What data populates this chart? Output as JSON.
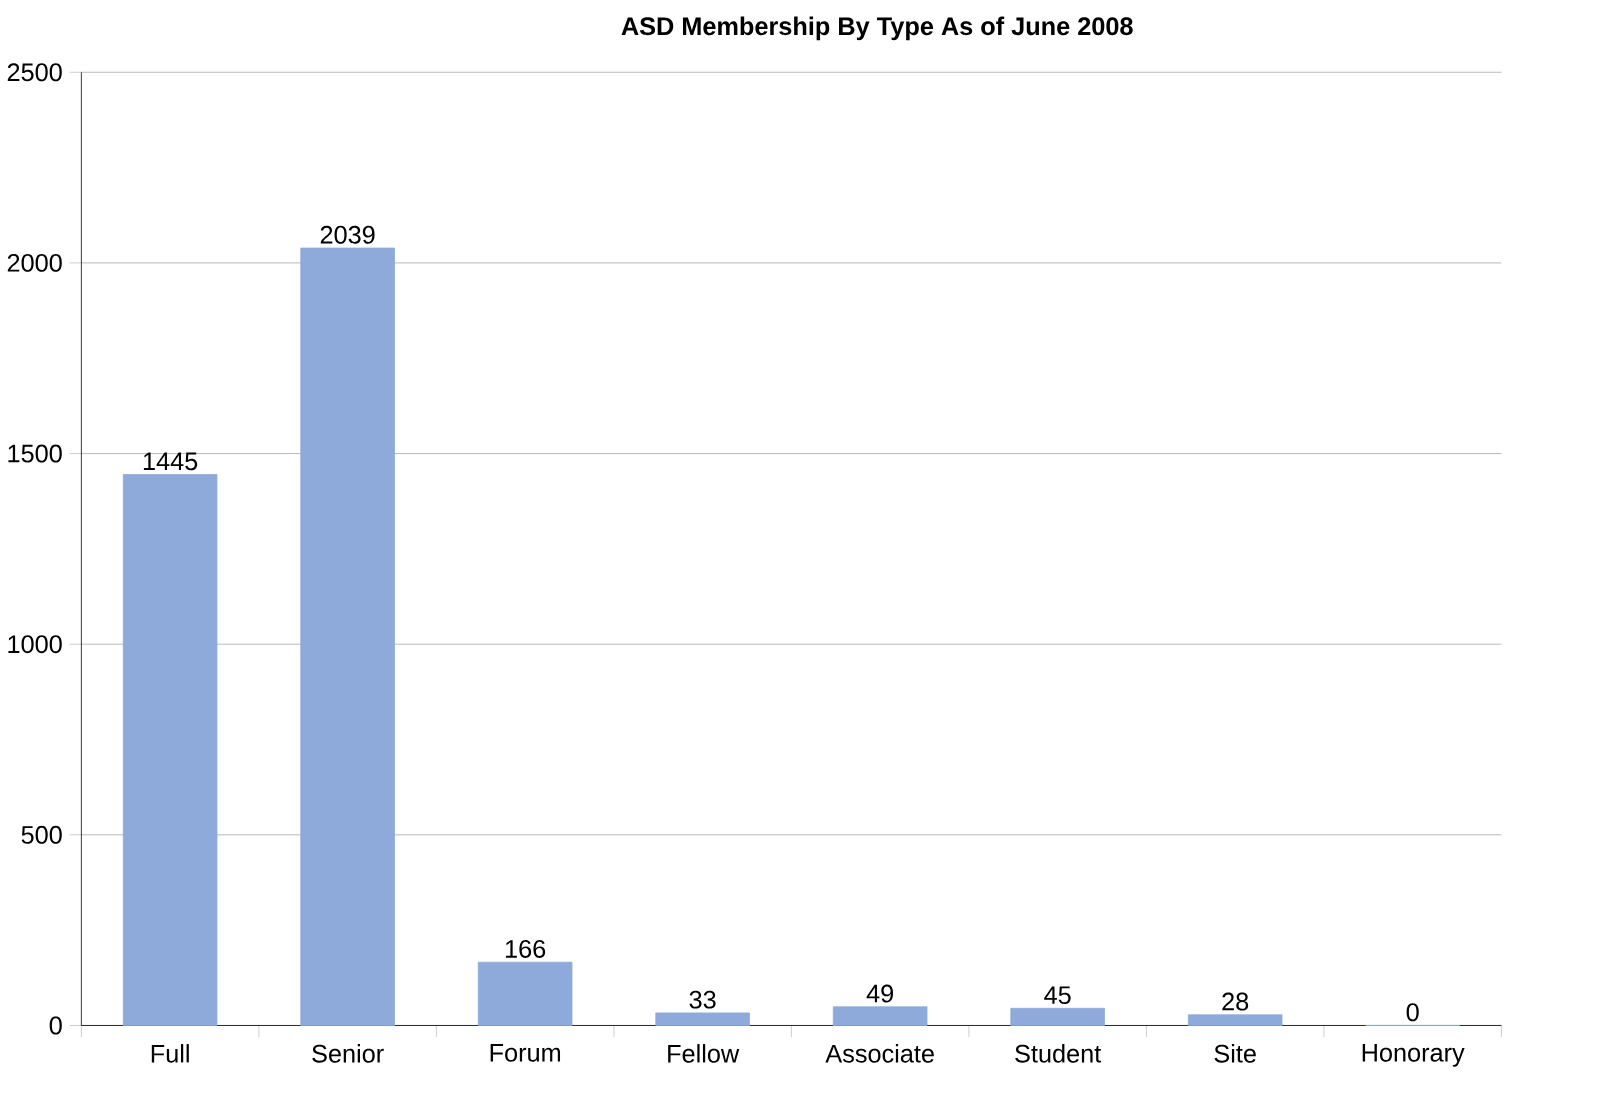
{
  "chart_data": {
    "type": "bar",
    "title": "ASD Membership By Type As of June 2008",
    "categories": [
      "Full",
      "Senior",
      "Forum",
      "Fellow",
      "Associate",
      "Student",
      "Site",
      "Honorary"
    ],
    "values": [
      1445,
      2039,
      166,
      33,
      49,
      45,
      28,
      0
    ],
    "color": "#8eaadb",
    "ylim": [
      0,
      2500
    ],
    "yticks": [
      0,
      500,
      1000,
      1500,
      2000,
      2500
    ],
    "grid": "y",
    "data_labels": true
  }
}
